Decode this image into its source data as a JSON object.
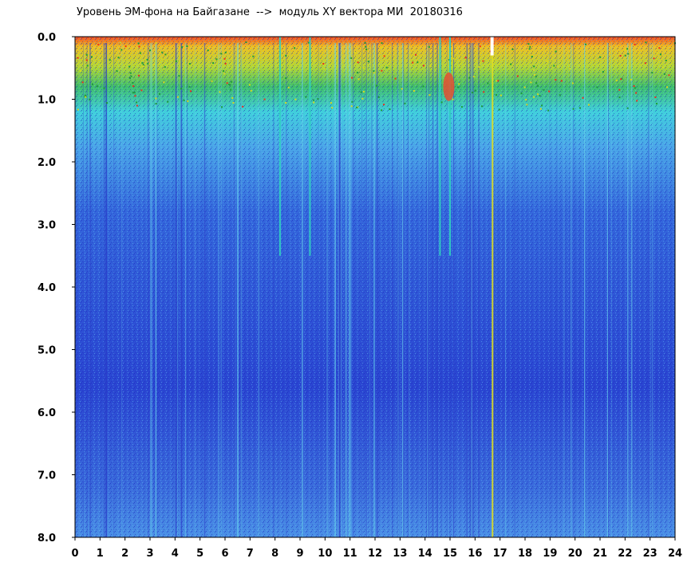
{
  "title": "Уровень ЭМ-фона на Байгазане  -->  модуль XY вектора МИ  20180316",
  "chart_data": {
    "type": "heatmap",
    "title": "Уровень ЭМ-фона на Байгазане  -->  модуль XY вектора МИ  20180316",
    "xlabel": "",
    "ylabel": "",
    "x_ticks": [
      "0",
      "1",
      "2",
      "3",
      "4",
      "5",
      "6",
      "7",
      "8",
      "9",
      "10",
      "11",
      "12",
      "13",
      "14",
      "15",
      "16",
      "17",
      "18",
      "19",
      "20",
      "21",
      "22",
      "23",
      "24"
    ],
    "y_ticks": [
      "0.0",
      "1.0",
      "2.0",
      "3.0",
      "4.0",
      "5.0",
      "6.0",
      "7.0",
      "8.0"
    ],
    "xlim": [
      0,
      24
    ],
    "ylim": [
      0,
      8
    ],
    "y_inverted": true,
    "grid": false,
    "colormap": [
      "#1f2fd0",
      "#3a78e8",
      "#3fd6e0",
      "#1f9a3a",
      "#e0e020",
      "#f0a020",
      "#e02020"
    ],
    "description_values": {
      "high_level_band_top": 0.0,
      "high_level_band_bottom": 1.2,
      "disturbance_hours": [
        8.2,
        9.4,
        14.6,
        15.0,
        16.7
      ]
    }
  }
}
